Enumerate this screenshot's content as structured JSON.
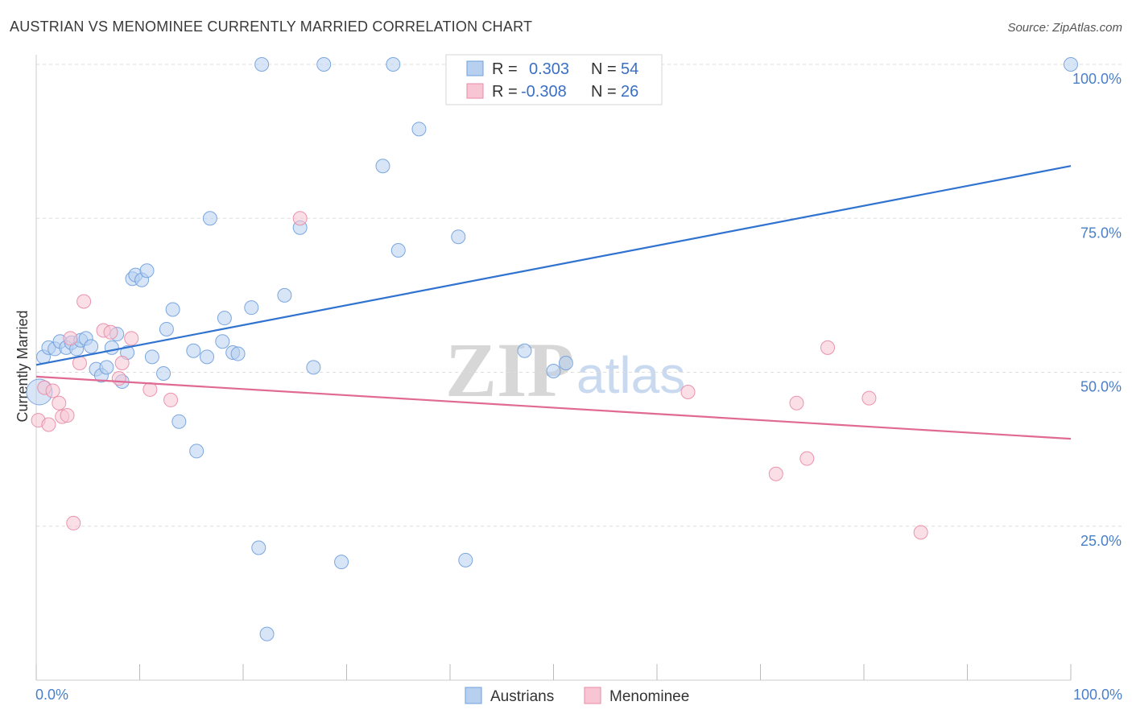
{
  "chart_data": {
    "type": "scatter",
    "title": "AUSTRIAN VS MENOMINEE CURRENTLY MARRIED CORRELATION CHART",
    "source": "Source: ZipAtlas.com",
    "xlabel": "",
    "ylabel": "Currently Married",
    "xlim": [
      0,
      100
    ],
    "ylim": [
      0,
      100
    ],
    "x_tick_labels": {
      "min": "0.0%",
      "max": "100.0%"
    },
    "y_tick_labels": [
      {
        "value": 25,
        "label": "25.0%"
      },
      {
        "value": 50,
        "label": "50.0%"
      },
      {
        "value": 75,
        "label": "75.0%"
      },
      {
        "value": 100,
        "label": "100.0%"
      }
    ],
    "grid": true,
    "watermark": {
      "part1": "ZIP",
      "part2": "atlas"
    },
    "legend": {
      "entries": [
        {
          "r_label": "R =",
          "r_value": "0.303",
          "n_label": "N =",
          "n_value": "54"
        },
        {
          "r_label": "R =",
          "r_value": "-0.308",
          "n_label": "N =",
          "n_value": "26"
        }
      ]
    },
    "series": [
      {
        "name": "Austrians",
        "color": "#6f9fdc",
        "fill": "#b7d0f0",
        "trend": {
          "x0": 0,
          "y0": 51.2,
          "x1": 100,
          "y1": 83.5,
          "color": "#2f72cf"
        },
        "points": [
          [
            0.3,
            46.8
          ],
          [
            0.7,
            52.5
          ],
          [
            1.2,
            54.0
          ],
          [
            1.8,
            53.8
          ],
          [
            2.3,
            55.0
          ],
          [
            2.9,
            54.0
          ],
          [
            3.4,
            54.8
          ],
          [
            3.9,
            53.8
          ],
          [
            4.3,
            55.2
          ],
          [
            4.8,
            55.5
          ],
          [
            5.3,
            54.2
          ],
          [
            5.8,
            50.5
          ],
          [
            6.3,
            49.5
          ],
          [
            6.8,
            50.8
          ],
          [
            7.3,
            54.0
          ],
          [
            7.8,
            56.2
          ],
          [
            8.3,
            48.5
          ],
          [
            8.8,
            53.2
          ],
          [
            9.3,
            65.2
          ],
          [
            9.6,
            65.8
          ],
          [
            10.2,
            65.0
          ],
          [
            10.7,
            66.5
          ],
          [
            11.2,
            52.5
          ],
          [
            12.3,
            49.8
          ],
          [
            12.6,
            57.0
          ],
          [
            13.2,
            60.2
          ],
          [
            13.8,
            42.0
          ],
          [
            15.2,
            53.5
          ],
          [
            15.5,
            37.2
          ],
          [
            16.5,
            52.5
          ],
          [
            16.8,
            75.0
          ],
          [
            18.0,
            55.0
          ],
          [
            18.2,
            58.8
          ],
          [
            19.0,
            53.2
          ],
          [
            19.5,
            53.0
          ],
          [
            20.8,
            60.5
          ],
          [
            21.5,
            21.5
          ],
          [
            21.8,
            100.0
          ],
          [
            22.3,
            7.5
          ],
          [
            24.0,
            62.5
          ],
          [
            25.5,
            73.5
          ],
          [
            26.8,
            50.8
          ],
          [
            27.8,
            100.0
          ],
          [
            29.5,
            19.2
          ],
          [
            33.5,
            83.5
          ],
          [
            34.5,
            100.0
          ],
          [
            35.0,
            69.8
          ],
          [
            37.0,
            89.5
          ],
          [
            40.8,
            72.0
          ],
          [
            41.5,
            19.5
          ],
          [
            47.2,
            53.5
          ],
          [
            50.0,
            50.2
          ],
          [
            51.2,
            51.5
          ],
          [
            100.0,
            100.0
          ]
        ]
      },
      {
        "name": "Menominee",
        "color": "#e88aa6",
        "fill": "#f7c5d4",
        "trend": {
          "x0": 0,
          "y0": 49.3,
          "x1": 100,
          "y1": 39.2,
          "color": "#e06a93"
        },
        "points": [
          [
            0.2,
            42.2
          ],
          [
            0.8,
            47.5
          ],
          [
            1.2,
            41.5
          ],
          [
            1.6,
            47.0
          ],
          [
            2.2,
            45.0
          ],
          [
            2.5,
            42.8
          ],
          [
            3.0,
            43.0
          ],
          [
            3.3,
            55.5
          ],
          [
            3.6,
            25.5
          ],
          [
            4.2,
            51.5
          ],
          [
            4.6,
            61.5
          ],
          [
            6.5,
            56.8
          ],
          [
            7.2,
            56.5
          ],
          [
            8.0,
            49.0
          ],
          [
            8.3,
            51.5
          ],
          [
            9.2,
            55.5
          ],
          [
            11.0,
            47.2
          ],
          [
            13.0,
            45.5
          ],
          [
            25.5,
            75.0
          ],
          [
            63.0,
            46.8
          ],
          [
            71.5,
            33.5
          ],
          [
            73.5,
            45.0
          ],
          [
            74.5,
            36.0
          ],
          [
            76.5,
            54.0
          ],
          [
            80.5,
            45.8
          ],
          [
            85.5,
            24.0
          ]
        ]
      }
    ]
  },
  "bottom_legend": {
    "austrians_label": "Austrians",
    "menominee_label": "Menominee"
  }
}
